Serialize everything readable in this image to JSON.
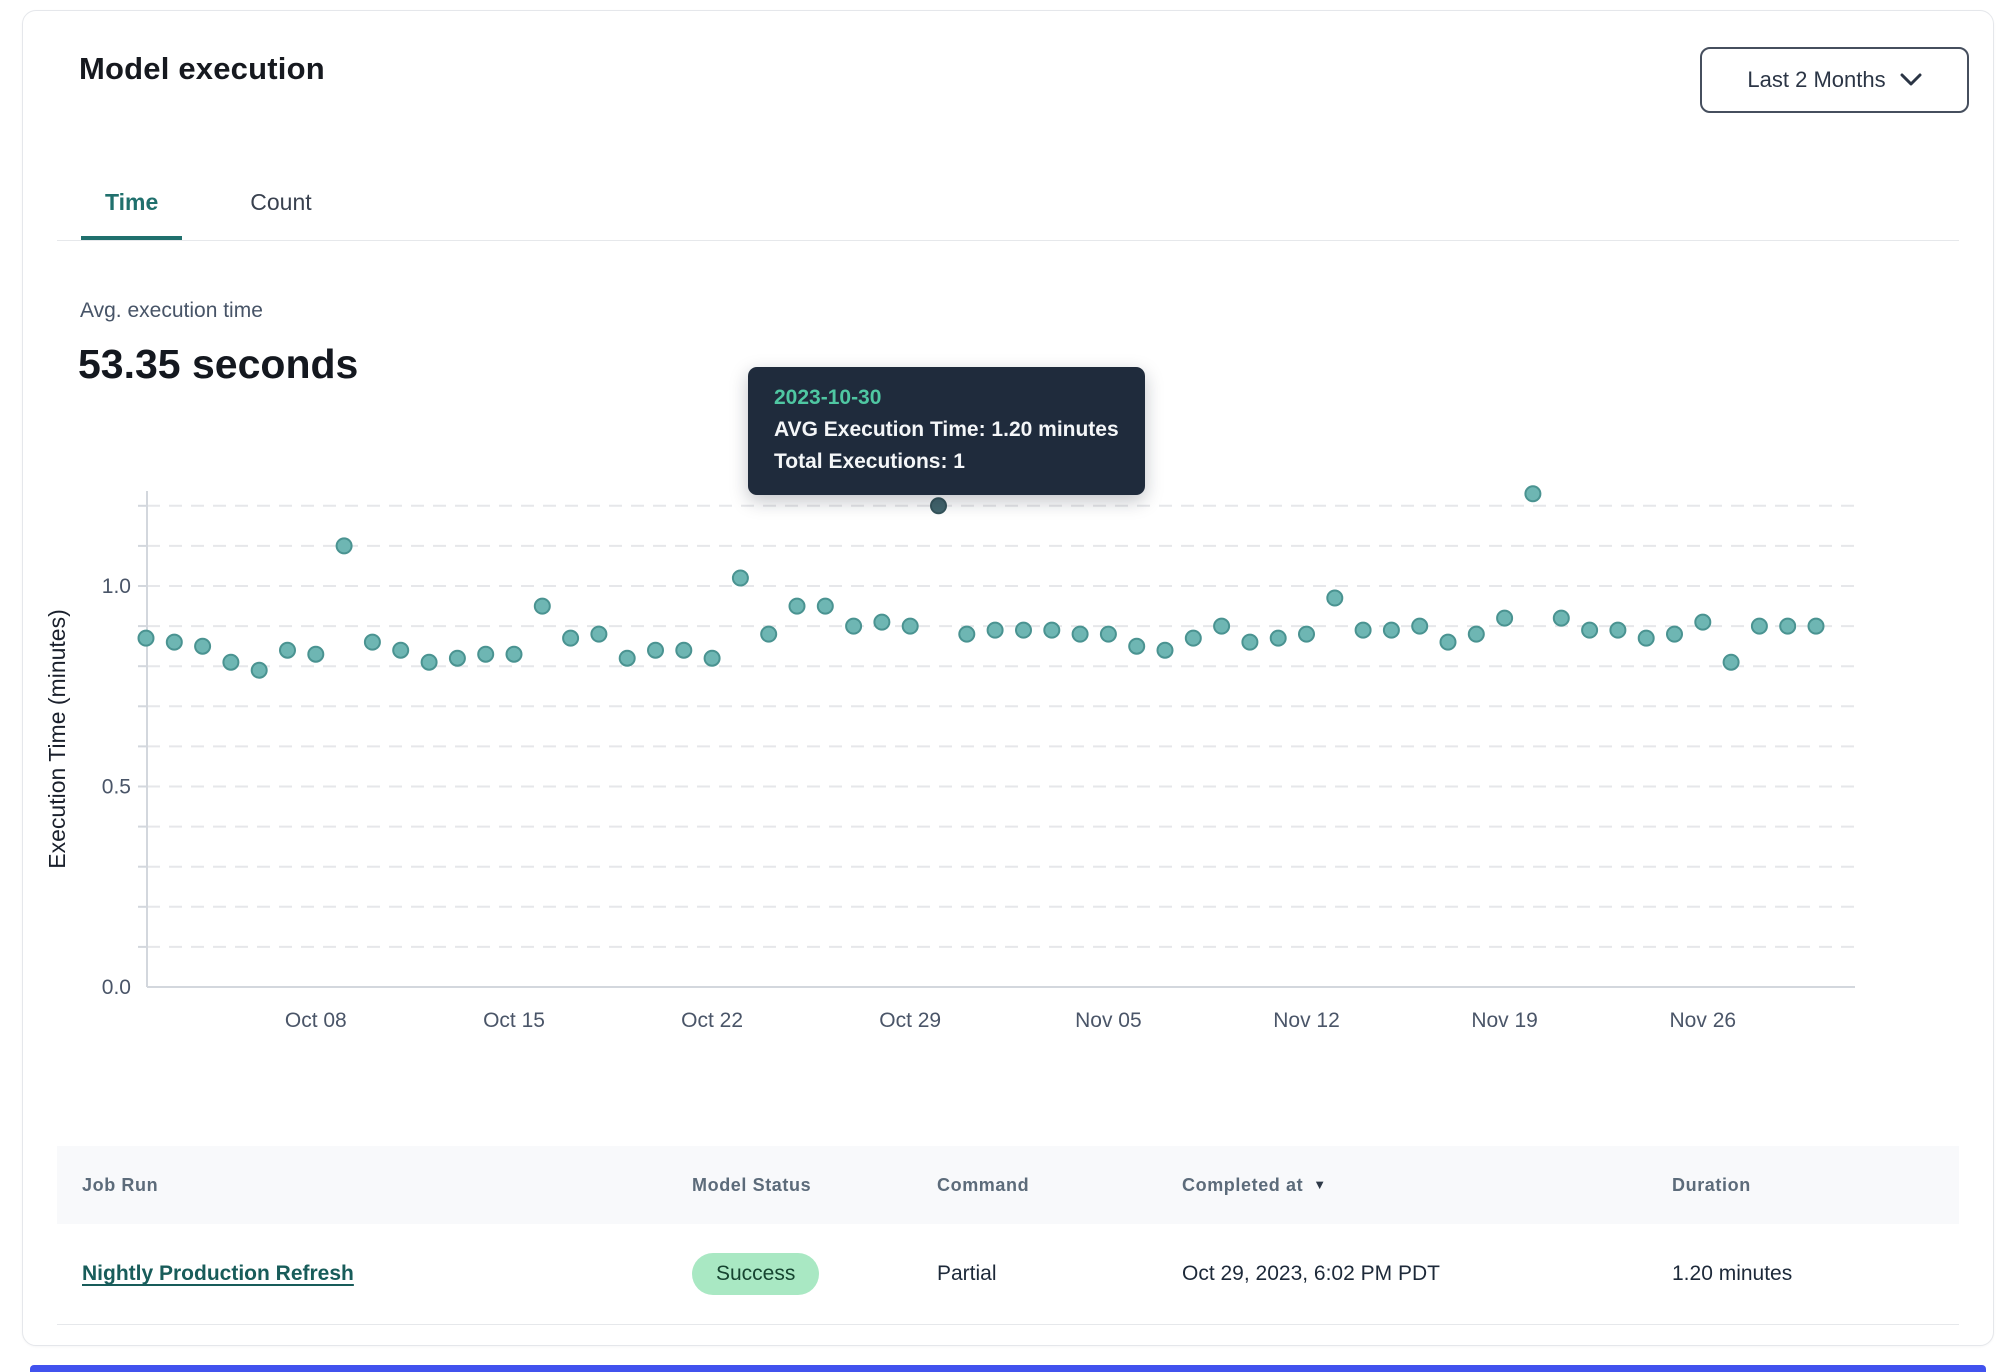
{
  "header": {
    "title": "Model execution",
    "range_selector": {
      "value": "Last 2 Months"
    }
  },
  "tabs": [
    {
      "label": "Time",
      "active": true
    },
    {
      "label": "Count",
      "active": false
    }
  ],
  "stat": {
    "label": "Avg. execution time",
    "value": "53.35 seconds"
  },
  "tooltip": {
    "date": "2023-10-30",
    "line1": "AVG Execution Time: 1.20 minutes",
    "line2": "Total Executions: 1"
  },
  "chart_data": {
    "type": "scatter",
    "title": "",
    "xlabel": "",
    "ylabel": "Execution Time (minutes)",
    "ylim": [
      0,
      1.25
    ],
    "ytick_labels": [
      {
        "v": 0.0,
        "label": "0.0"
      },
      {
        "v": 0.5,
        "label": "0.5"
      },
      {
        "v": 1.0,
        "label": "1.0"
      }
    ],
    "grid": "horizontal dashed every 0.1 from 0.1 to 1.2",
    "legend": "none",
    "x_ticks": [
      {
        "date": "2023-10-08",
        "label": "Oct 08"
      },
      {
        "date": "2023-10-15",
        "label": "Oct 15"
      },
      {
        "date": "2023-10-22",
        "label": "Oct 22"
      },
      {
        "date": "2023-10-29",
        "label": "Oct 29"
      },
      {
        "date": "2023-11-05",
        "label": "Nov 05"
      },
      {
        "date": "2023-11-12",
        "label": "Nov 12"
      },
      {
        "date": "2023-11-19",
        "label": "Nov 19"
      },
      {
        "date": "2023-11-26",
        "label": "Nov 26"
      }
    ],
    "highlight_date": "2023-10-30",
    "series": [
      {
        "name": "AVG Execution Time (minutes)",
        "points": [
          [
            "2023-10-02",
            0.87
          ],
          [
            "2023-10-03",
            0.86
          ],
          [
            "2023-10-04",
            0.85
          ],
          [
            "2023-10-05",
            0.81
          ],
          [
            "2023-10-06",
            0.79
          ],
          [
            "2023-10-07",
            0.84
          ],
          [
            "2023-10-08",
            0.83
          ],
          [
            "2023-10-09",
            1.1
          ],
          [
            "2023-10-10",
            0.86
          ],
          [
            "2023-10-11",
            0.84
          ],
          [
            "2023-10-12",
            0.81
          ],
          [
            "2023-10-13",
            0.82
          ],
          [
            "2023-10-14",
            0.83
          ],
          [
            "2023-10-15",
            0.83
          ],
          [
            "2023-10-16",
            0.95
          ],
          [
            "2023-10-17",
            0.87
          ],
          [
            "2023-10-18",
            0.88
          ],
          [
            "2023-10-19",
            0.82
          ],
          [
            "2023-10-20",
            0.84
          ],
          [
            "2023-10-21",
            0.84
          ],
          [
            "2023-10-22",
            0.82
          ],
          [
            "2023-10-23",
            1.02
          ],
          [
            "2023-10-24",
            0.88
          ],
          [
            "2023-10-25",
            0.95
          ],
          [
            "2023-10-26",
            0.95
          ],
          [
            "2023-10-27",
            0.9
          ],
          [
            "2023-10-28",
            0.91
          ],
          [
            "2023-10-29",
            0.9
          ],
          [
            "2023-10-30",
            1.2
          ],
          [
            "2023-10-31",
            0.88
          ],
          [
            "2023-11-01",
            0.89
          ],
          [
            "2023-11-02",
            0.89
          ],
          [
            "2023-11-03",
            0.89
          ],
          [
            "2023-11-04",
            0.88
          ],
          [
            "2023-11-05",
            0.88
          ],
          [
            "2023-11-06",
            0.85
          ],
          [
            "2023-11-07",
            0.84
          ],
          [
            "2023-11-08",
            0.87
          ],
          [
            "2023-11-09",
            0.9
          ],
          [
            "2023-11-10",
            0.86
          ],
          [
            "2023-11-11",
            0.87
          ],
          [
            "2023-11-12",
            0.88
          ],
          [
            "2023-11-13",
            0.97
          ],
          [
            "2023-11-14",
            0.89
          ],
          [
            "2023-11-15",
            0.89
          ],
          [
            "2023-11-16",
            0.9
          ],
          [
            "2023-11-17",
            0.86
          ],
          [
            "2023-11-18",
            0.88
          ],
          [
            "2023-11-19",
            0.92
          ],
          [
            "2023-11-20",
            1.23
          ],
          [
            "2023-11-21",
            0.92
          ],
          [
            "2023-11-22",
            0.89
          ],
          [
            "2023-11-23",
            0.89
          ],
          [
            "2023-11-24",
            0.87
          ],
          [
            "2023-11-25",
            0.88
          ],
          [
            "2023-11-26",
            0.91
          ],
          [
            "2023-11-27",
            0.81
          ],
          [
            "2023-11-28",
            0.9
          ],
          [
            "2023-11-29",
            0.9
          ],
          [
            "2023-11-30",
            0.9
          ]
        ]
      }
    ]
  },
  "table": {
    "columns": [
      "Job Run",
      "Model Status",
      "Command",
      "Completed at",
      "Duration"
    ],
    "sort": {
      "column": "Completed at",
      "direction": "desc"
    },
    "rows": [
      {
        "job_run": "Nightly Production Refresh",
        "model_status": "Success",
        "command": "Partial",
        "completed_at": "Oct 29, 2023, 6:02 PM PDT",
        "duration": "1.20 minutes"
      }
    ]
  },
  "colors": {
    "point_fill": "#6eb6b3",
    "point_stroke": "#4a9391",
    "point_highlight_fill": "#42656d",
    "point_highlight_stroke": "#35545b",
    "tooltip_bg": "#1f2b3c",
    "tooltip_date": "#4fc7a2",
    "tab_active": "#20706d",
    "link": "#185c5a",
    "badge_bg": "#a9e8c3",
    "badge_text": "#164430",
    "accent_bar": "#4152ee",
    "grid": "#e6e7ea",
    "axis": "#d3d7dd"
  }
}
